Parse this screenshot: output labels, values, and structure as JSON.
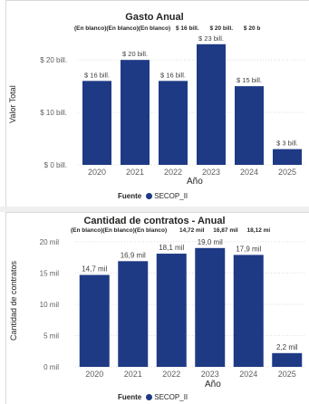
{
  "charts": [
    {
      "title": "Gasto Anual",
      "ylabel": "Valor Total",
      "xlabel": "Año",
      "legend_title": "Fuente",
      "legend_item": "SECOP_II",
      "blank_header_labels": [
        "(En blanco)",
        "(En blanco)",
        "(En blanco)",
        "$ 16 bill.",
        "$ 20 bill.",
        "$ 20 b"
      ],
      "y_tick_labels": [
        "$ 0 bill.",
        "$ 10 bill.",
        "$ 20 bill."
      ],
      "data_labels": [
        "$ 16 bill.",
        "$ 20 bill.",
        "$ 16 bill.",
        "$ 23 bill.",
        "$ 15 bill.",
        "$ 3 bill."
      ]
    },
    {
      "title": "Cantidad de contratos - Anual",
      "ylabel": "Cantidad de contratos",
      "xlabel": "Año",
      "legend_title": "Fuente",
      "legend_item": "SECOP_II",
      "blank_header_labels": [
        "(En blanco)",
        "(En blanco)",
        "(En blanco)",
        "14,72 mil",
        "16,87 mil",
        "18,12 mi"
      ],
      "y_tick_labels": [
        "0 mil",
        "5 mil",
        "10 mil",
        "15 mil",
        "20 mil"
      ],
      "data_labels": [
        "14,7 mil",
        "16,9 mil",
        "18,1 mil",
        "19,0 mil",
        "17,9 mil",
        "2,2 mil"
      ]
    }
  ],
  "chart_data": [
    {
      "type": "bar",
      "title": "Gasto Anual",
      "xlabel": "Año",
      "ylabel": "Valor Total",
      "categories": [
        "2020",
        "2021",
        "2022",
        "2023",
        "2024",
        "2025"
      ],
      "series": [
        {
          "name": "SECOP_II",
          "values": [
            16,
            20,
            16,
            23,
            15,
            3
          ]
        }
      ],
      "ylim": [
        0,
        24
      ],
      "y_ticks": [
        0,
        10,
        20
      ],
      "grid": true,
      "legend_position": "bottom",
      "color": "#1f3a85"
    },
    {
      "type": "bar",
      "title": "Cantidad de contratos - Anual",
      "xlabel": "Año",
      "ylabel": "Cantidad de contratos",
      "categories": [
        "2020",
        "2021",
        "2022",
        "2023",
        "2024",
        "2025"
      ],
      "series": [
        {
          "name": "SECOP_II",
          "values": [
            14.7,
            16.9,
            18.1,
            19.0,
            17.9,
            2.2
          ]
        }
      ],
      "ylim": [
        0,
        21
      ],
      "y_ticks": [
        0,
        5,
        10,
        15,
        20
      ],
      "grid": true,
      "legend_position": "bottom",
      "color": "#1f3a85"
    }
  ]
}
